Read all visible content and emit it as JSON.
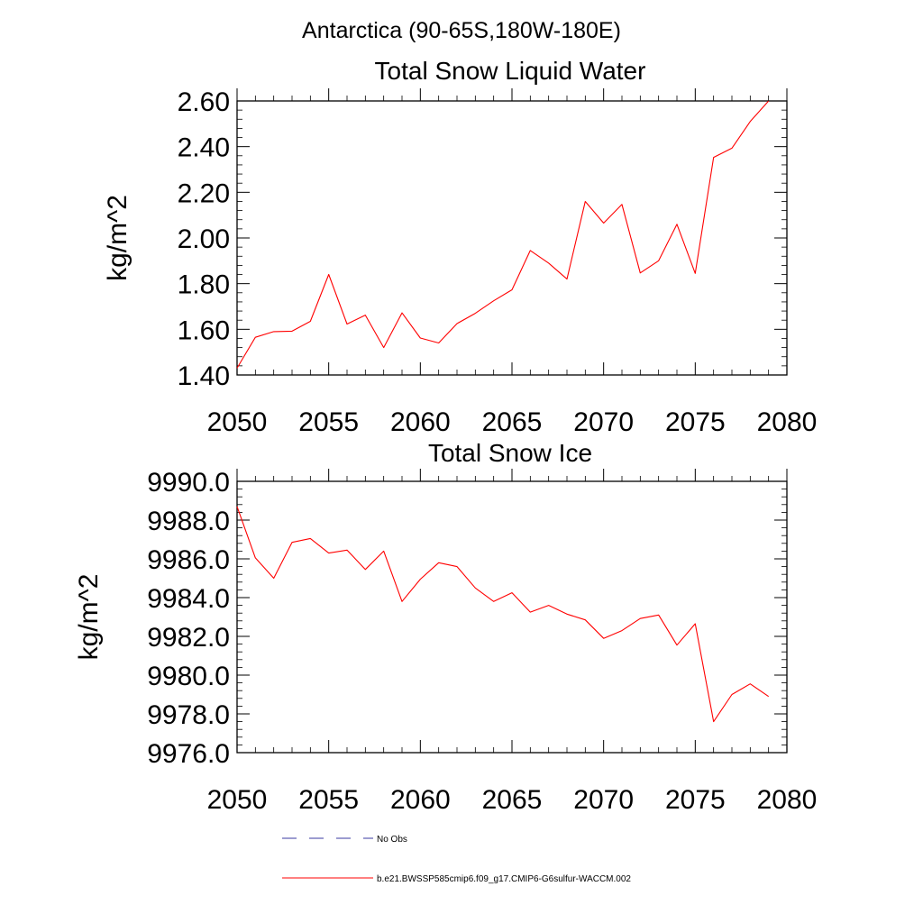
{
  "figure": {
    "title": "Antarctica (90-65S,180W-180E)"
  },
  "chart_data": [
    {
      "type": "line",
      "title": "Total Snow Liquid Water",
      "xlabel": "",
      "ylabel": "kg/m^2",
      "xlim": [
        2050,
        2080
      ],
      "ylim": [
        1.4,
        2.6
      ],
      "x_ticks": [
        2050,
        2055,
        2060,
        2065,
        2070,
        2075,
        2080
      ],
      "x_tick_labels": [
        "2050",
        "2055",
        "2060",
        "2065",
        "2070",
        "2075",
        "2080"
      ],
      "y_ticks": [
        1.4,
        1.6,
        1.8,
        2.0,
        2.2,
        2.4,
        2.6
      ],
      "y_tick_labels": [
        "1.40",
        "1.60",
        "1.80",
        "2.00",
        "2.20",
        "2.40",
        "2.60"
      ],
      "grid": false,
      "series": [
        {
          "name": "b.e21.BWSSP585cmip6.f09_g17.CMIP6-G6sulfur-WACCM.002",
          "color": "#ff0000",
          "x": [
            2050,
            2051,
            2052,
            2053,
            2054,
            2055,
            2056,
            2057,
            2058,
            2059,
            2060,
            2061,
            2062,
            2063,
            2064,
            2065,
            2066,
            2067,
            2068,
            2069,
            2070,
            2071,
            2072,
            2073,
            2074,
            2075,
            2076,
            2077,
            2078,
            2079
          ],
          "values": [
            1.43,
            1.565,
            1.59,
            1.592,
            1.635,
            1.84,
            1.623,
            1.662,
            1.52,
            1.672,
            1.562,
            1.54,
            1.625,
            1.67,
            1.725,
            1.773,
            1.945,
            1.89,
            1.82,
            2.16,
            2.065,
            2.147,
            1.847,
            1.9,
            2.06,
            1.845,
            2.353,
            2.393,
            2.51,
            2.6
          ]
        }
      ]
    },
    {
      "type": "line",
      "title": "Total Snow Ice",
      "xlabel": "",
      "ylabel": "kg/m^2",
      "xlim": [
        2050,
        2080
      ],
      "ylim": [
        9976.0,
        9990.0
      ],
      "x_ticks": [
        2050,
        2055,
        2060,
        2065,
        2070,
        2075,
        2080
      ],
      "x_tick_labels": [
        "2050",
        "2055",
        "2060",
        "2065",
        "2070",
        "2075",
        "2080"
      ],
      "y_ticks": [
        9976.0,
        9978.0,
        9980.0,
        9982.0,
        9984.0,
        9986.0,
        9988.0,
        9990.0
      ],
      "y_tick_labels": [
        "9976.0",
        "9978.0",
        "9980.0",
        "9982.0",
        "9984.0",
        "9986.0",
        "9988.0",
        "9990.0"
      ],
      "grid": false,
      "series": [
        {
          "name": "b.e21.BWSSP585cmip6.f09_g17.CMIP6-G6sulfur-WACCM.002",
          "color": "#ff0000",
          "x": [
            2050,
            2051,
            2052,
            2053,
            2054,
            2055,
            2056,
            2057,
            2058,
            2059,
            2060,
            2061,
            2062,
            2063,
            2064,
            2065,
            2066,
            2067,
            2068,
            2069,
            2070,
            2071,
            2072,
            2073,
            2074,
            2075,
            2076,
            2077,
            2078,
            2079
          ],
          "values": [
            9988.7,
            9986.05,
            9985.0,
            9986.85,
            9987.05,
            9986.3,
            9986.45,
            9985.45,
            9986.4,
            9983.8,
            9984.95,
            9985.8,
            9985.6,
            9984.5,
            9983.8,
            9984.25,
            9983.25,
            9983.6,
            9983.15,
            9982.85,
            9981.9,
            9982.3,
            9982.92,
            9983.1,
            9981.55,
            9982.65,
            9977.6,
            9979.0,
            9979.55,
            9978.9
          ]
        }
      ]
    }
  ],
  "legend": {
    "entries": [
      {
        "label": "No Obs",
        "color": "#3a3aa0",
        "style": "dashed"
      },
      {
        "label": "b.e21.BWSSP585cmip6.f09_g17.CMIP6-G6sulfur-WACCM.002",
        "color": "#ff0000",
        "style": "solid"
      }
    ]
  }
}
